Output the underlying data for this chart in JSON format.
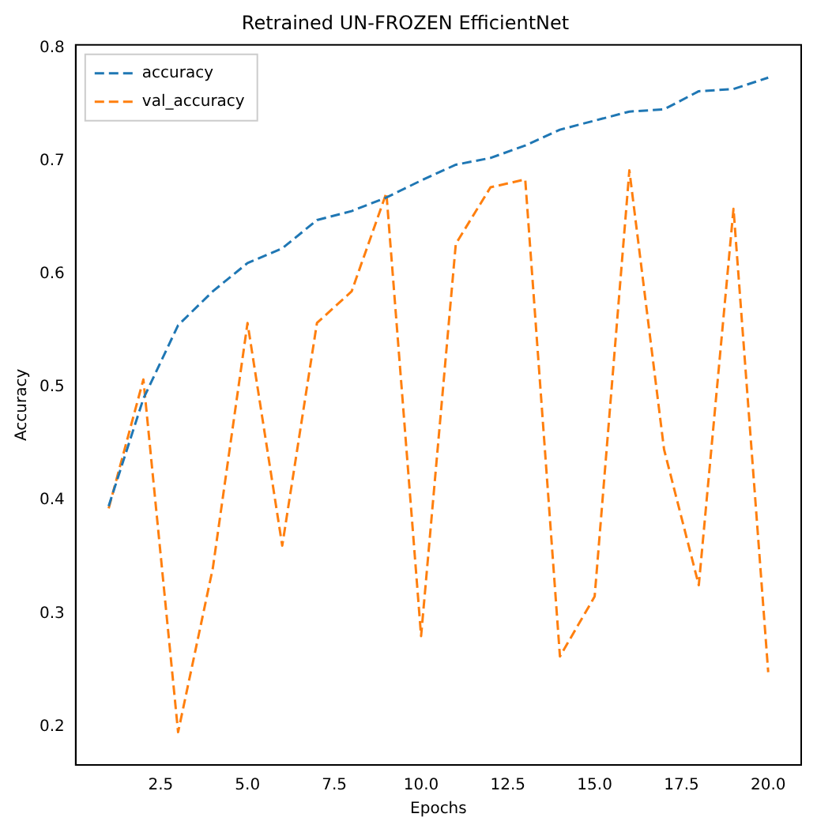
{
  "chart_data": {
    "type": "line",
    "title": "Retrained UN-FROZEN EfficientNet",
    "xlabel": "Epochs",
    "ylabel": "Accuracy",
    "x": [
      1,
      2,
      3,
      4,
      5,
      6,
      7,
      8,
      9,
      10,
      11,
      12,
      13,
      14,
      15,
      16,
      17,
      18,
      19,
      20
    ],
    "series": [
      {
        "name": "accuracy",
        "color": "#1f77b4",
        "values": [
          0.395,
          0.49,
          0.555,
          0.585,
          0.61,
          0.623,
          0.648,
          0.656,
          0.668,
          0.683,
          0.697,
          0.703,
          0.714,
          0.728,
          0.736,
          0.744,
          0.746,
          0.762,
          0.764,
          0.774
        ]
      },
      {
        "name": "val_accuracy",
        "color": "#ff7f0e",
        "values": [
          0.393,
          0.507,
          0.195,
          0.34,
          0.557,
          0.36,
          0.557,
          0.585,
          0.672,
          0.28,
          0.627,
          0.677,
          0.684,
          0.262,
          0.315,
          0.692,
          0.445,
          0.325,
          0.658,
          0.248
        ]
      }
    ],
    "xlim": [
      0.05,
      20.95
    ],
    "ylim": [
      0.166,
      0.803
    ],
    "xticks": [
      {
        "value": 2.5,
        "label": "2.5"
      },
      {
        "value": 5,
        "label": "5.0"
      },
      {
        "value": 7.5,
        "label": "7.5"
      },
      {
        "value": 10,
        "label": "10.0"
      },
      {
        "value": 12.5,
        "label": "12.5"
      },
      {
        "value": 15,
        "label": "15.0"
      },
      {
        "value": 17.5,
        "label": "17.5"
      },
      {
        "value": 20,
        "label": "20.0"
      }
    ],
    "yticks": [
      0.2,
      0.3,
      0.4,
      0.5,
      0.6,
      0.7,
      0.8
    ],
    "grid": false,
    "legend": "top left",
    "marker": "none",
    "line_style": "dashed"
  }
}
